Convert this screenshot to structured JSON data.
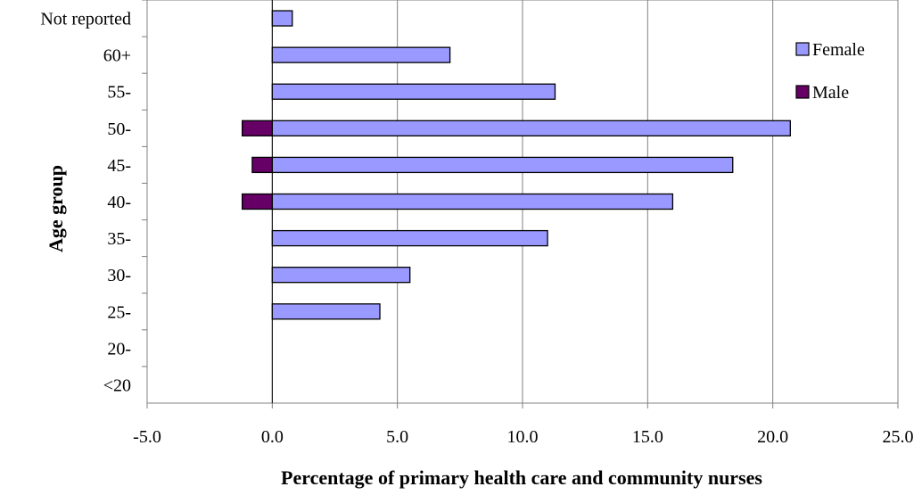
{
  "chart_data": {
    "type": "bar",
    "orientation": "horizontal",
    "title": "",
    "xlabel": "Percentage of primary health care and community nurses",
    "ylabel": "Age group",
    "xlim": [
      -5.0,
      25.0
    ],
    "x_ticks": [
      "-5.0",
      "0.0",
      "5.0",
      "10.0",
      "15.0",
      "20.0",
      "25.0"
    ],
    "categories": [
      "Not reported",
      "60+",
      "55-",
      "50-",
      "45-",
      "40-",
      "35-",
      "30-",
      "25-",
      "20-",
      "<20"
    ],
    "series": [
      {
        "name": "Female",
        "color": "#9999ff",
        "values": [
          0.8,
          7.1,
          11.3,
          20.7,
          18.4,
          16.0,
          11.0,
          5.5,
          4.3,
          0,
          0
        ]
      },
      {
        "name": "Male",
        "color": "#660066",
        "values": [
          0,
          0,
          0,
          -1.2,
          -0.8,
          -1.2,
          0,
          0,
          0,
          0,
          0
        ]
      }
    ],
    "grid": {
      "vertical": true,
      "horizontal": false
    },
    "legend": {
      "placement": "right-top"
    }
  }
}
